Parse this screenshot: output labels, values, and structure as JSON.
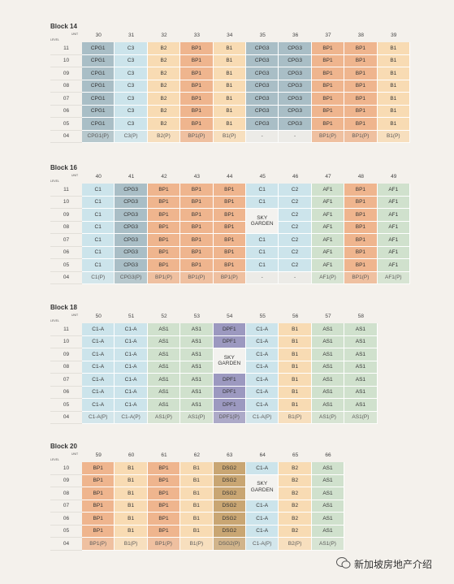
{
  "unit_label": "UNIT",
  "level_label": "LEVEL",
  "colors": {
    "CPG1": "#a9bec6",
    "CPG3": "#a9bec6",
    "C1": "#cce4eb",
    "C2": "#cce4eb",
    "C3": "#cce4eb",
    "C1-A": "#cce4eb",
    "B1": "#f8dbb3",
    "B2": "#f8dbb3",
    "BP1": "#efb58e",
    "AF1": "#d0e1cd",
    "AS1": "#d0e1cd",
    "DPF1": "#9c99c0",
    "DSG2": "#c9a673",
    "-": "#ebeae7",
    "SKY GARDEN": "#f3f2ef"
  },
  "blocks": [
    {
      "title": "Block 14",
      "units": [
        "30",
        "31",
        "32",
        "33",
        "34",
        "35",
        "36",
        "37",
        "38",
        "39"
      ],
      "rows": [
        {
          "level": "11",
          "cells": [
            "CPG1",
            "C3",
            "B2",
            "BP1",
            "B1",
            "CPG3",
            "CPG3",
            "BP1",
            "BP1",
            "B1"
          ]
        },
        {
          "level": "10",
          "cells": [
            "CPG1",
            "C3",
            "B2",
            "BP1",
            "B1",
            "CPG3",
            "CPG3",
            "BP1",
            "BP1",
            "B1"
          ]
        },
        {
          "level": "09",
          "cells": [
            "CPG1",
            "C3",
            "B2",
            "BP1",
            "B1",
            "CPG3",
            "CPG3",
            "BP1",
            "BP1",
            "B1"
          ]
        },
        {
          "level": "08",
          "cells": [
            "CPG1",
            "C3",
            "B2",
            "BP1",
            "B1",
            "CPG3",
            "CPG3",
            "BP1",
            "BP1",
            "B1"
          ]
        },
        {
          "level": "07",
          "cells": [
            "CPG1",
            "C3",
            "B2",
            "BP1",
            "B1",
            "CPG3",
            "CPG3",
            "BP1",
            "BP1",
            "B1"
          ]
        },
        {
          "level": "06",
          "cells": [
            "CPG1",
            "C3",
            "B2",
            "BP1",
            "B1",
            "CPG3",
            "CPG3",
            "BP1",
            "BP1",
            "B1"
          ]
        },
        {
          "level": "05",
          "cells": [
            "CPG1",
            "C3",
            "B2",
            "BP1",
            "B1",
            "CPG3",
            "CPG3",
            "BP1",
            "BP1",
            "B1"
          ]
        },
        {
          "level": "04",
          "cells": [
            "CPG1(P)",
            "C3(P)",
            "B2(P)",
            "BP1(P)",
            "B1(P)",
            "-",
            "-",
            "BP1(P)",
            "BP1(P)",
            "B1(P)"
          ]
        }
      ]
    },
    {
      "title": "Block 16",
      "units": [
        "40",
        "41",
        "42",
        "43",
        "44",
        "45",
        "46",
        "47",
        "48",
        "49"
      ],
      "rows": [
        {
          "level": "11",
          "cells": [
            "C1",
            "CPG3",
            "BP1",
            "BP1",
            "BP1",
            "C1",
            "C2",
            "AF1",
            "BP1",
            "AF1"
          ]
        },
        {
          "level": "10",
          "cells": [
            "C1",
            "CPG3",
            "BP1",
            "BP1",
            "BP1",
            "C1",
            "C2",
            "AF1",
            "BP1",
            "AF1"
          ]
        },
        {
          "level": "09",
          "cells": [
            "C1",
            "CPG3",
            "BP1",
            "BP1",
            "BP1",
            "SKY GARDEN",
            "C2",
            "AF1",
            "BP1",
            "AF1"
          ]
        },
        {
          "level": "08",
          "cells": [
            "C1",
            "CPG3",
            "BP1",
            "BP1",
            "BP1",
            null,
            "C2",
            "AF1",
            "BP1",
            "AF1"
          ]
        },
        {
          "level": "07",
          "cells": [
            "C1",
            "CPG3",
            "BP1",
            "BP1",
            "BP1",
            "C1",
            "C2",
            "AF1",
            "BP1",
            "AF1"
          ]
        },
        {
          "level": "06",
          "cells": [
            "C1",
            "CPG3",
            "BP1",
            "BP1",
            "BP1",
            "C1",
            "C2",
            "AF1",
            "BP1",
            "AF1"
          ]
        },
        {
          "level": "05",
          "cells": [
            "C1",
            "CPG3",
            "BP1",
            "BP1",
            "BP1",
            "C1",
            "C2",
            "AF1",
            "BP1",
            "AF1"
          ]
        },
        {
          "level": "04",
          "cells": [
            "C1(P)",
            "CPG3(P)",
            "BP1(P)",
            "BP1(P)",
            "BP1(P)",
            "-",
            "-",
            "AF1(P)",
            "BP1(P)",
            "AF1(P)"
          ]
        }
      ]
    },
    {
      "title": "Block 18",
      "units": [
        "50",
        "51",
        "52",
        "53",
        "54",
        "55",
        "56",
        "57",
        "58"
      ],
      "rows": [
        {
          "level": "11",
          "cells": [
            "C1-A",
            "C1-A",
            "AS1",
            "AS1",
            "DPF1",
            "C1-A",
            "B1",
            "AS1",
            "AS1"
          ]
        },
        {
          "level": "10",
          "cells": [
            "C1-A",
            "C1-A",
            "AS1",
            "AS1",
            "DPF1",
            "C1-A",
            "B1",
            "AS1",
            "AS1"
          ]
        },
        {
          "level": "09",
          "cells": [
            "C1-A",
            "C1-A",
            "AS1",
            "AS1",
            "SKY GARDEN",
            "C1-A",
            "B1",
            "AS1",
            "AS1"
          ]
        },
        {
          "level": "08",
          "cells": [
            "C1-A",
            "C1-A",
            "AS1",
            "AS1",
            null,
            "C1-A",
            "B1",
            "AS1",
            "AS1"
          ]
        },
        {
          "level": "07",
          "cells": [
            "C1-A",
            "C1-A",
            "AS1",
            "AS1",
            "DPF1",
            "C1-A",
            "B1",
            "AS1",
            "AS1"
          ]
        },
        {
          "level": "06",
          "cells": [
            "C1-A",
            "C1-A",
            "AS1",
            "AS1",
            "DPF1",
            "C1-A",
            "B1",
            "AS1",
            "AS1"
          ]
        },
        {
          "level": "05",
          "cells": [
            "C1-A",
            "C1-A",
            "AS1",
            "AS1",
            "DPF1",
            "C1-A",
            "B1",
            "AS1",
            "AS1"
          ]
        },
        {
          "level": "04",
          "cells": [
            "C1-A(P)",
            "C1-A(P)",
            "AS1(P)",
            "AS1(P)",
            "DPF1(P)",
            "C1-A(P)",
            "B1(P)",
            "AS1(P)",
            "AS1(P)"
          ]
        }
      ]
    },
    {
      "title": "Block 20",
      "units": [
        "59",
        "60",
        "61",
        "62",
        "63",
        "64",
        "65",
        "66"
      ],
      "rows": [
        {
          "level": "10",
          "cells": [
            "BP1",
            "B1",
            "BP1",
            "B1",
            "DSG2",
            "C1-A",
            "B2",
            "AS1"
          ]
        },
        {
          "level": "09",
          "cells": [
            "BP1",
            "B1",
            "BP1",
            "B1",
            "DSG2",
            "SKY GARDEN",
            "B2",
            "AS1"
          ]
        },
        {
          "level": "08",
          "cells": [
            "BP1",
            "B1",
            "BP1",
            "B1",
            "DSG2",
            null,
            "B2",
            "AS1"
          ]
        },
        {
          "level": "07",
          "cells": [
            "BP1",
            "B1",
            "BP1",
            "B1",
            "DSG2",
            "C1-A",
            "B2",
            "AS1"
          ]
        },
        {
          "level": "06",
          "cells": [
            "BP1",
            "B1",
            "BP1",
            "B1",
            "DSG2",
            "C1-A",
            "B2",
            "AS1"
          ]
        },
        {
          "level": "05",
          "cells": [
            "BP1",
            "B1",
            "BP1",
            "B1",
            "DSG2",
            "C1-A",
            "B2",
            "AS1"
          ]
        },
        {
          "level": "04",
          "cells": [
            "BP1(P)",
            "B1(P)",
            "BP1(P)",
            "B1(P)",
            "DSG2(P)",
            "C1-A(P)",
            "B2(P)",
            "AS1(P)"
          ]
        }
      ]
    }
  ],
  "watermark": "新加坡房地产介绍"
}
